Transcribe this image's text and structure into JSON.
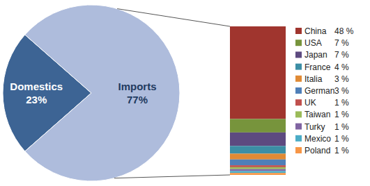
{
  "chart_data": [
    {
      "type": "pie",
      "categories": [
        "Domestics",
        "Imports"
      ],
      "values": [
        23,
        77
      ],
      "value_labels": [
        "23%",
        "77%"
      ],
      "colors": [
        "#3d6494",
        "#aebcdc"
      ],
      "data_labels": true
    },
    {
      "type": "bar",
      "stacked": true,
      "legend": "right",
      "tick_labels": false,
      "ylim": [
        0,
        77
      ],
      "series": [
        {
          "name": "China",
          "color": "#a0352e",
          "values": [
            48
          ],
          "value_labels": [
            "48 %"
          ]
        },
        {
          "name": "USA",
          "color": "#77943c",
          "values": [
            7
          ],
          "value_labels": [
            "7 %"
          ]
        },
        {
          "name": "Japan",
          "color": "#5d4a80",
          "values": [
            7
          ],
          "value_labels": [
            "7 %"
          ]
        },
        {
          "name": "France",
          "color": "#3c8ea5",
          "values": [
            4
          ],
          "value_labels": [
            "4 %"
          ]
        },
        {
          "name": "Italia",
          "color": "#e08a35",
          "values": [
            3
          ],
          "value_labels": [
            "3 %"
          ]
        },
        {
          "name": "German",
          "color": "#4f7fb8",
          "values": [
            3
          ],
          "value_labels": [
            "3 %"
          ]
        },
        {
          "name": "UK",
          "color": "#c0504d",
          "values": [
            1
          ],
          "value_labels": [
            "1 %"
          ]
        },
        {
          "name": "Taiwan",
          "color": "#9bbb59",
          "values": [
            1
          ],
          "value_labels": [
            "1 %"
          ]
        },
        {
          "name": "Turky",
          "color": "#8064a2",
          "values": [
            1
          ],
          "value_labels": [
            "1 %"
          ]
        },
        {
          "name": "Mexico",
          "color": "#4bacc6",
          "values": [
            1
          ],
          "value_labels": [
            "1 %"
          ]
        },
        {
          "name": "Poland",
          "color": "#f79646",
          "values": [
            1
          ],
          "value_labels": [
            "1 %"
          ]
        }
      ]
    }
  ]
}
